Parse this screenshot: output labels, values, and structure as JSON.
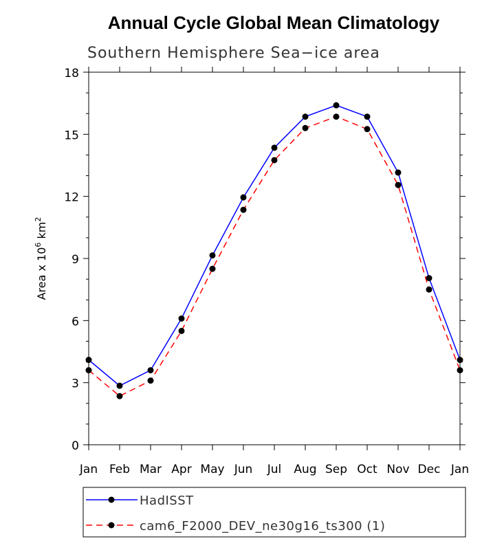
{
  "chart_data": {
    "type": "line",
    "title": "Annual Cycle Global Mean Climatology",
    "subtitle": "Southern Hemisphere Sea−ice area",
    "ylabel": "Area x 10",
    "ylabel_sup": "6",
    "ylabel_unit": "km",
    "ylabel_unit_sup": "2",
    "xlabel": "",
    "categories": [
      "Jan",
      "Feb",
      "Mar",
      "Apr",
      "May",
      "Jun",
      "Jul",
      "Aug",
      "Sep",
      "Oct",
      "Nov",
      "Dec",
      "Jan"
    ],
    "ylim": [
      0,
      18
    ],
    "yticks": [
      0,
      3,
      6,
      9,
      12,
      15,
      18
    ],
    "yticks_minor": [
      1,
      2,
      4,
      5,
      7,
      8,
      10,
      11,
      13,
      14,
      16,
      17
    ],
    "series": [
      {
        "name": "HadISST",
        "color": "#0000ff",
        "dash": "solid",
        "values": [
          4.1,
          2.85,
          3.6,
          6.1,
          9.15,
          11.95,
          14.35,
          15.85,
          16.4,
          15.85,
          13.15,
          8.05,
          4.1
        ]
      },
      {
        "name": "cam6_F2000_DEV_ne30g16_ts300 (1)",
        "color": "#ff0000",
        "dash": "dashed",
        "values": [
          3.6,
          2.35,
          3.1,
          5.5,
          8.5,
          11.35,
          13.75,
          15.3,
          15.85,
          15.25,
          12.55,
          7.5,
          3.6
        ]
      }
    ],
    "marker_color": "#000000",
    "legend_position": "bottom-left"
  }
}
